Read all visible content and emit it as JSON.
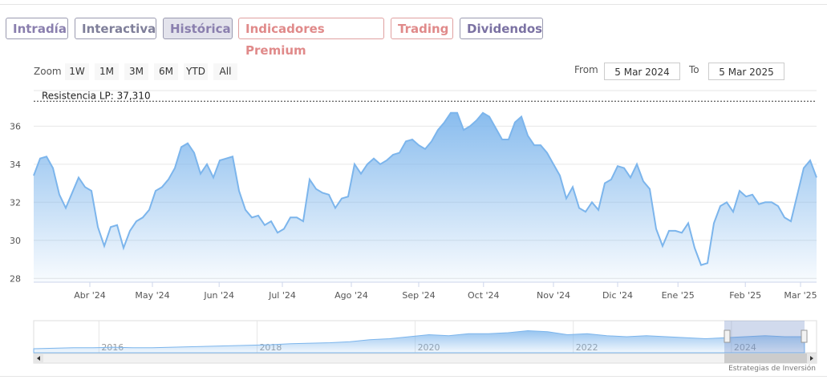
{
  "tabs": [
    "Intradía",
    "Interactiva",
    "Histórica",
    "Indicadores Premium",
    "Trading",
    "Dividendos"
  ],
  "zoom": {
    "label": "Zoom",
    "buttons": [
      "1W",
      "1M",
      "3M",
      "6M",
      "YTD",
      "All"
    ]
  },
  "range": {
    "from_label": "From",
    "from": "5 Mar 2024",
    "to_label": "To",
    "to": "5 Mar 2025"
  },
  "credit": "Estrategias de Inversión",
  "chart_data": [
    {
      "type": "line",
      "color": "#7cb5ec",
      "grid": true,
      "annotation": {
        "label": "Resistencia LP: 37,310",
        "value": 37.31
      },
      "values": [
        33.4,
        34.3,
        34.4,
        33.8,
        32.4,
        31.7,
        32.5,
        33.3,
        32.8,
        32.6,
        30.7,
        29.7,
        30.7,
        30.8,
        29.6,
        30.5,
        31.0,
        31.2,
        31.6,
        32.6,
        32.8,
        33.2,
        33.8,
        34.9,
        35.1,
        34.6,
        33.5,
        34.0,
        33.3,
        34.2,
        34.3,
        34.4,
        32.6,
        31.6,
        31.2,
        31.3,
        30.8,
        31.0,
        30.4,
        30.6,
        31.2,
        31.2,
        31.0,
        33.2,
        32.7,
        32.5,
        32.4,
        31.7,
        32.2,
        32.3,
        34.0,
        33.5,
        34.0,
        34.3,
        34.0,
        34.2,
        34.5,
        34.6,
        35.2,
        35.3,
        35.0,
        34.8,
        35.2,
        35.8,
        36.2,
        36.7,
        36.7,
        35.8,
        36.0,
        36.3,
        36.7,
        36.5,
        35.9,
        35.3,
        35.3,
        36.2,
        36.5,
        35.5,
        35.0,
        35.0,
        34.6,
        34.0,
        33.4,
        32.2,
        32.8,
        31.7,
        31.5,
        32.0,
        31.6,
        33.0,
        33.2,
        33.9,
        33.8,
        33.3,
        34.0,
        33.1,
        32.7,
        30.6,
        29.7,
        30.5,
        30.5,
        30.4,
        30.9,
        29.6,
        28.7,
        28.8,
        30.9,
        31.8,
        32.0,
        31.5,
        32.6,
        32.3,
        32.4,
        31.9,
        32.0,
        32.0,
        31.8,
        31.2,
        31.0,
        32.4,
        33.8,
        34.2,
        33.3
      ],
      "xlim": [
        0,
        122
      ],
      "xticks": [
        {
          "value": 8.75,
          "label": "Abr '24"
        },
        {
          "value": 18.5,
          "label": "May '24"
        },
        {
          "value": 28.9,
          "label": "Jun '24"
        },
        {
          "value": 38.75,
          "label": "Jul '24"
        },
        {
          "value": 49.5,
          "label": "Ago '24"
        },
        {
          "value": 60,
          "label": "Sep '24"
        },
        {
          "value": 70.1,
          "label": "Oct '24"
        },
        {
          "value": 81,
          "label": "Nov '24"
        },
        {
          "value": 91,
          "label": "Dic '24"
        },
        {
          "value": 100.4,
          "label": "Ene '25"
        },
        {
          "value": 110.9,
          "label": "Feb '25"
        },
        {
          "value": 119.5,
          "label": "Mar '25"
        }
      ],
      "ylim": [
        27.8,
        37.7
      ],
      "yticks": [
        28,
        30,
        32,
        34,
        36
      ]
    },
    {
      "type": "area",
      "color": "#7cb5ec",
      "values": [
        12,
        12.5,
        13,
        13,
        13.5,
        13,
        13,
        13.5,
        14,
        14.5,
        15,
        15.5,
        16,
        17,
        17.5,
        18,
        19,
        21,
        22,
        24,
        26,
        25,
        27,
        27,
        28,
        30,
        29,
        26,
        27,
        25,
        24,
        25,
        24,
        23,
        22,
        23,
        24,
        25,
        24,
        24
      ],
      "xlim": [
        0,
        39
      ],
      "xticks": [
        {
          "value": 3.3,
          "label": "2016"
        },
        {
          "value": 11.3,
          "label": "2018"
        },
        {
          "value": 19.3,
          "label": "2020"
        },
        {
          "value": 27.3,
          "label": "2022"
        },
        {
          "value": 35.3,
          "label": "2024"
        }
      ],
      "ylim": [
        8,
        40
      ]
    }
  ]
}
